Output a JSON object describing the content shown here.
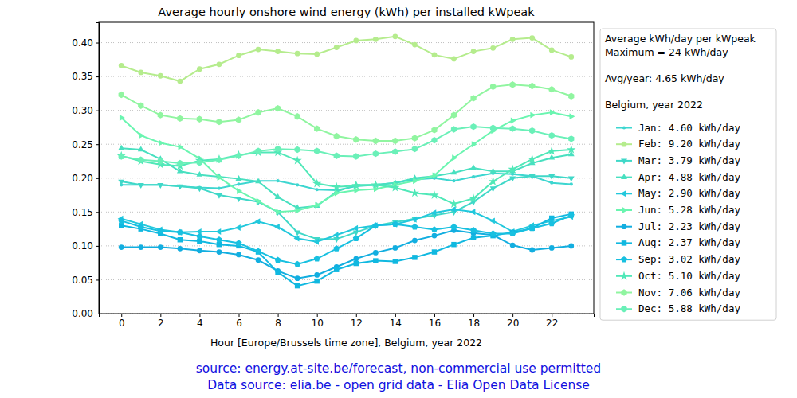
{
  "chart_data": {
    "type": "line",
    "title": "Average hourly onshore wind energy (kWh) per installed kWpeak",
    "x_label": "Hour [Europe/Brussels time zone], Belgium, year 2022",
    "legend_title": [
      [
        "Average kWh/day per kWpeak",
        "Maximum = 24 kWh/day"
      ],
      [
        "Avg/year: 4.65 kWh/day"
      ],
      [
        "Belgium, year 2022"
      ]
    ],
    "footnotes": [
      "source: energy.at-site.be/forecast, non-commercial use permitted",
      "Data source: elia.be - open grid data - Elia Open Data License"
    ],
    "x": [
      0,
      1,
      2,
      3,
      4,
      5,
      6,
      7,
      8,
      9,
      10,
      11,
      12,
      13,
      14,
      15,
      16,
      17,
      18,
      19,
      20,
      21,
      22,
      23
    ],
    "xlim": [
      -1.15,
      24.15
    ],
    "xticks": [
      0,
      2,
      4,
      6,
      8,
      10,
      12,
      14,
      16,
      18,
      20,
      22
    ],
    "ylim": [
      0,
      0.43
    ],
    "yticks": [
      {
        "value": 0,
        "label": "0.00"
      },
      {
        "value": 0.05,
        "label": "0.05"
      },
      {
        "value": 0.1,
        "label": "0.10"
      },
      {
        "value": 0.15,
        "label": "0.15"
      },
      {
        "value": 0.2,
        "label": "0.20"
      },
      {
        "value": 0.25,
        "label": "0.25"
      },
      {
        "value": 0.3,
        "label": "0.30"
      },
      {
        "value": 0.35,
        "label": "0.35"
      },
      {
        "value": 0.4,
        "label": "0.40"
      }
    ],
    "grid": "y",
    "legend": "right",
    "series": [
      {
        "name": "Jan: 4.60 kWh/day",
        "color": "#3dd6d0",
        "marker": "point",
        "values": [
          0.19,
          0.19,
          0.19,
          0.188,
          0.186,
          0.185,
          0.191,
          0.196,
          0.196,
          0.19,
          0.183,
          0.182,
          0.188,
          0.19,
          0.193,
          0.198,
          0.2,
          0.196,
          0.202,
          0.207,
          0.206,
          0.203,
          0.193,
          0.191
        ]
      },
      {
        "name": "Feb: 9.20 kWh/day",
        "color": "#b5ec8d",
        "marker": "circle",
        "values": [
          0.366,
          0.356,
          0.351,
          0.343,
          0.361,
          0.368,
          0.381,
          0.39,
          0.387,
          0.384,
          0.383,
          0.393,
          0.403,
          0.405,
          0.409,
          0.397,
          0.382,
          0.376,
          0.387,
          0.392,
          0.405,
          0.407,
          0.389,
          0.379
        ]
      },
      {
        "name": "Mar: 3.79 kWh/day",
        "color": "#3fd8c8",
        "marker": "triangle_down",
        "values": [
          0.195,
          0.19,
          0.19,
          0.188,
          0.185,
          0.175,
          0.17,
          0.165,
          0.15,
          0.12,
          0.11,
          0.11,
          0.12,
          0.13,
          0.135,
          0.14,
          0.145,
          0.15,
          0.165,
          0.185,
          0.2,
          0.203,
          0.203,
          0.2
        ]
      },
      {
        "name": "Apr: 4.88 kWh/day",
        "color": "#48e0c0",
        "marker": "triangle_up",
        "values": [
          0.244,
          0.242,
          0.228,
          0.21,
          0.205,
          0.202,
          0.199,
          0.195,
          0.172,
          0.156,
          0.159,
          0.18,
          0.19,
          0.19,
          0.193,
          0.2,
          0.203,
          0.208,
          0.215,
          0.21,
          0.21,
          0.222,
          0.23,
          0.235
        ]
      },
      {
        "name": "May: 2.90 kWh/day",
        "color": "#22c8dc",
        "marker": "triangle_left",
        "values": [
          0.14,
          0.132,
          0.124,
          0.12,
          0.121,
          0.121,
          0.127,
          0.136,
          0.128,
          0.111,
          0.106,
          0.116,
          0.126,
          0.13,
          0.132,
          0.139,
          0.149,
          0.154,
          0.15,
          0.137,
          0.121,
          0.13,
          0.137,
          0.143
        ]
      },
      {
        "name": "Jun: 5.28 kWh/day",
        "color": "#6af5b0",
        "marker": "triangle_right",
        "values": [
          0.289,
          0.263,
          0.252,
          0.246,
          0.229,
          0.201,
          0.181,
          0.166,
          0.15,
          0.152,
          0.16,
          0.178,
          0.182,
          0.184,
          0.19,
          0.196,
          0.204,
          0.23,
          0.25,
          0.27,
          0.285,
          0.293,
          0.297,
          0.291
        ]
      },
      {
        "name": "Jul: 2.23 kWh/day",
        "color": "#12aee0",
        "marker": "circle",
        "values": [
          0.098,
          0.098,
          0.098,
          0.096,
          0.093,
          0.091,
          0.087,
          0.079,
          0.063,
          0.052,
          0.057,
          0.069,
          0.081,
          0.09,
          0.097,
          0.108,
          0.115,
          0.123,
          0.119,
          0.116,
          0.101,
          0.094,
          0.097,
          0.1
        ]
      },
      {
        "name": "Aug: 2.37 kWh/day",
        "color": "#10b8e0",
        "marker": "square",
        "values": [
          0.13,
          0.125,
          0.118,
          0.109,
          0.107,
          0.102,
          0.1,
          0.091,
          0.061,
          0.041,
          0.048,
          0.065,
          0.074,
          0.078,
          0.077,
          0.083,
          0.091,
          0.102,
          0.112,
          0.115,
          0.12,
          0.126,
          0.141,
          0.147
        ]
      },
      {
        "name": "Sep: 3.02 kWh/day",
        "color": "#18c0e0",
        "marker": "pentagon",
        "values": [
          0.137,
          0.128,
          0.122,
          0.12,
          0.114,
          0.109,
          0.104,
          0.092,
          0.079,
          0.073,
          0.081,
          0.096,
          0.111,
          0.13,
          0.132,
          0.128,
          0.124,
          0.128,
          0.123,
          0.118,
          0.118,
          0.126,
          0.133,
          0.145
        ]
      },
      {
        "name": "Oct: 5.10 kWh/day",
        "color": "#50e8b8",
        "marker": "star",
        "values": [
          0.233,
          0.225,
          0.22,
          0.218,
          0.226,
          0.228,
          0.234,
          0.238,
          0.238,
          0.226,
          0.192,
          0.187,
          0.189,
          0.19,
          0.186,
          0.178,
          0.175,
          0.162,
          0.17,
          0.195,
          0.213,
          0.228,
          0.24,
          0.242
        ]
      },
      {
        "name": "Nov: 7.06 kWh/day",
        "color": "#90f5a0",
        "marker": "hexagon",
        "values": [
          0.323,
          0.307,
          0.293,
          0.288,
          0.287,
          0.283,
          0.286,
          0.297,
          0.303,
          0.291,
          0.273,
          0.262,
          0.257,
          0.255,
          0.255,
          0.259,
          0.271,
          0.293,
          0.318,
          0.335,
          0.338,
          0.336,
          0.331,
          0.321
        ]
      },
      {
        "name": "Dec: 5.88 kWh/day",
        "color": "#6af0b8",
        "marker": "hexagon",
        "values": [
          0.232,
          0.227,
          0.225,
          0.222,
          0.223,
          0.227,
          0.233,
          0.24,
          0.243,
          0.242,
          0.24,
          0.233,
          0.232,
          0.236,
          0.239,
          0.243,
          0.256,
          0.272,
          0.276,
          0.274,
          0.273,
          0.27,
          0.263,
          0.258
        ]
      }
    ]
  }
}
